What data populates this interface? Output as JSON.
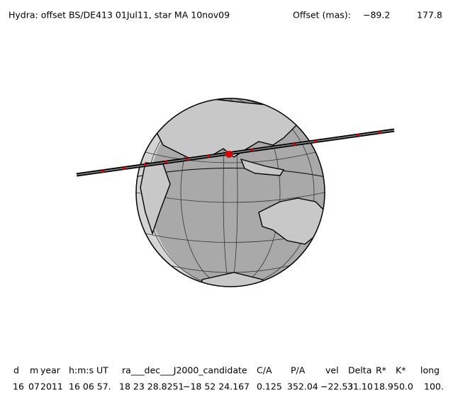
{
  "header": {
    "title": "Hydra: offset BS/DE413 01Jul11, star MA 10nov09",
    "offset_label": "Offset (mas):",
    "offset_values": [
      "−89.2",
      "177.8"
    ]
  },
  "table": {
    "columns": [
      "d",
      "m",
      "year",
      "h:m:s UT",
      "ra___dec___J2000_candidate",
      "C/A",
      "P/A",
      "vel",
      "Delta",
      "R*",
      "K*",
      "long"
    ],
    "row": [
      "16",
      "07",
      "2011",
      "16 06 57.",
      "18 23 28.8251",
      "−18 52 24.167",
      "0.125",
      "352.04",
      "−22.53",
      "31.10",
      "18.9",
      "50.0",
      "100."
    ]
  }
}
